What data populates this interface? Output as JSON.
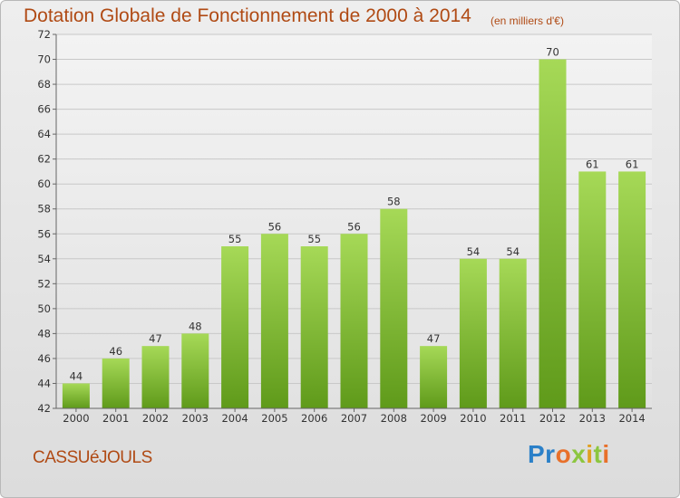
{
  "header": {
    "title": "Dotation Globale de Fonctionnement de 2000 à 2014",
    "unit_note": "(en milliers d'€)"
  },
  "footer": {
    "commune": "CASSUéJOULS",
    "logo_text": "Proxiti"
  },
  "colors": {
    "title": "#b04a14",
    "bar_light": "#9fd24f",
    "bar_dark": "#5f9a1a",
    "grid": "#cccccc",
    "axis": "#666666",
    "background": "#e6e6e6"
  },
  "chart_data": {
    "type": "bar",
    "title": "Dotation Globale de Fonctionnement de 2000 à 2014",
    "subtitle": "(en milliers d'€)",
    "categories": [
      "2000",
      "2001",
      "2002",
      "2003",
      "2004",
      "2005",
      "2006",
      "2007",
      "2008",
      "2009",
      "2010",
      "2011",
      "2012",
      "2013",
      "2014"
    ],
    "values": [
      44,
      46,
      47,
      48,
      55,
      56,
      55,
      56,
      58,
      47,
      54,
      54,
      70,
      61,
      61
    ],
    "ylim": [
      42,
      72
    ],
    "yticks": [
      42,
      44,
      46,
      48,
      50,
      52,
      54,
      56,
      58,
      60,
      62,
      64,
      66,
      68,
      70,
      72
    ],
    "grid": true,
    "legend": "none"
  }
}
